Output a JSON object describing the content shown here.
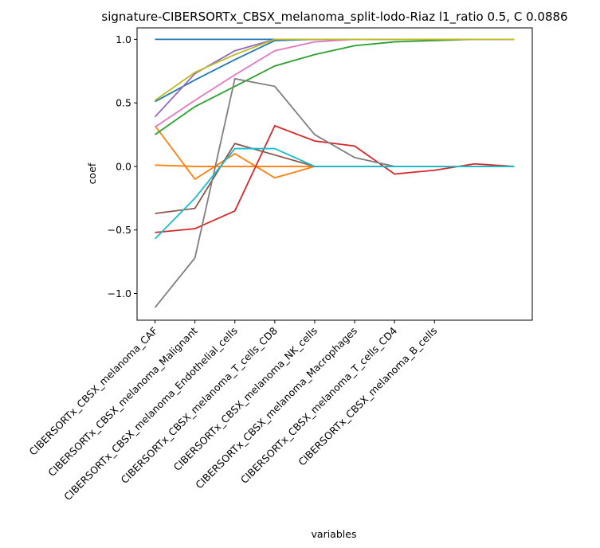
{
  "chart_data": {
    "type": "line",
    "title": "signature-CIBERSORTx_CBSX_melanoma_split-lodo-Riaz l1_ratio 0.5, C 0.0886",
    "xlabel": "variables",
    "ylabel": "coef",
    "categories": [
      "CIBERSORTx_CBSX_melanoma_CAF",
      "CIBERSORTx_CBSX_melanoma_Malignant",
      "CIBERSORTx_CBSX_melanoma_Endothelial_cells",
      "CIBERSORTx_CBSX_melanoma_T_cells_CD8",
      "CIBERSORTx_CBSX_melanoma_NK_cells",
      "CIBERSORTx_CBSX_melanoma_Macrophages",
      "CIBERSORTx_CBSX_melanoma_T_cells_CD4",
      "CIBERSORTx_CBSX_melanoma_B_cells",
      null,
      null
    ],
    "ylim": [
      -1.21,
      1.09
    ],
    "yticks": [
      {
        "value": -1.0,
        "label": "−1.0"
      },
      {
        "value": -0.5,
        "label": "−0.5"
      },
      {
        "value": 0.0,
        "label": "0.0"
      },
      {
        "value": 0.5,
        "label": "0.5"
      },
      {
        "value": 1.0,
        "label": "1.0"
      }
    ],
    "series": [
      {
        "color": "#1f77b4",
        "values": [
          1.0,
          1.0,
          1.0,
          1.0,
          1.0,
          1.0,
          1.0,
          1.0,
          1.0,
          1.0
        ]
      },
      {
        "color": "#ff7f0e",
        "values": [
          0.01,
          0.0,
          0.0,
          0.0,
          0.0,
          0.0,
          0.0,
          0.0,
          0.0,
          0.0
        ]
      },
      {
        "color": "#1f77b4",
        "values": [
          0.51,
          0.68,
          0.84,
          0.99,
          1.0,
          1.0,
          1.0,
          1.0,
          1.0,
          1.0
        ]
      },
      {
        "color": "#ff7f0e",
        "values": [
          0.32,
          -0.1,
          0.1,
          -0.09,
          0.0,
          0.0,
          0.0,
          0.0,
          0.0,
          0.0
        ]
      },
      {
        "color": "#2ca02c",
        "values": [
          0.25,
          0.47,
          0.63,
          0.79,
          0.88,
          0.95,
          0.98,
          0.99,
          1.0,
          1.0
        ]
      },
      {
        "color": "#d62728",
        "values": [
          -0.52,
          -0.49,
          -0.35,
          0.32,
          0.2,
          0.16,
          -0.06,
          -0.03,
          0.02,
          0.0
        ]
      },
      {
        "color": "#9467bd",
        "values": [
          0.39,
          0.73,
          0.91,
          1.0,
          1.0,
          1.0,
          1.0,
          1.0,
          1.0,
          1.0
        ]
      },
      {
        "color": "#8c564b",
        "values": [
          -0.37,
          -0.33,
          0.18,
          0.09,
          0.0,
          0.0,
          0.0,
          0.0,
          0.0,
          0.0
        ]
      },
      {
        "color": "#e377c2",
        "values": [
          0.31,
          0.52,
          0.72,
          0.91,
          0.98,
          1.0,
          1.0,
          1.0,
          1.0,
          1.0
        ]
      },
      {
        "color": "#7f7f7f",
        "values": [
          -1.11,
          -0.72,
          0.69,
          0.63,
          0.25,
          0.07,
          0.0,
          0.0,
          0.0,
          0.0
        ]
      },
      {
        "color": "#bcbd22",
        "values": [
          0.52,
          0.74,
          0.88,
          1.0,
          1.0,
          1.0,
          1.0,
          1.0,
          1.0,
          1.0
        ]
      },
      {
        "color": "#17becf",
        "values": [
          -0.57,
          -0.25,
          0.14,
          0.14,
          0.0,
          0.0,
          0.0,
          0.0,
          0.0,
          0.0
        ]
      }
    ]
  }
}
